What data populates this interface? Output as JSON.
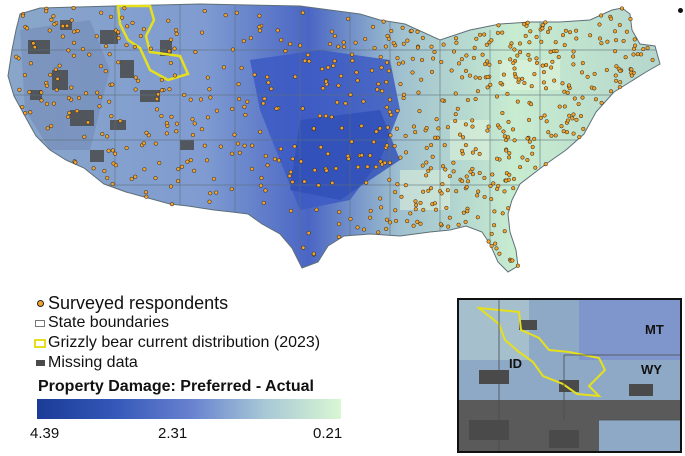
{
  "legend": {
    "respondents": "Surveyed respondents",
    "state_boundaries": "State boundaries",
    "grizzly": "Grizzly bear current distribution (2023)",
    "missing": "Missing data"
  },
  "scale": {
    "title": "Property Damage: Preferred - Actual",
    "min_label": "4.39",
    "mid_label": "2.31",
    "max_label": "0.21"
  },
  "inset": {
    "labels": {
      "mt": "MT",
      "id": "ID",
      "wy": "WY"
    }
  },
  "colors": {
    "high": "#1b3b96",
    "mid": "#6680cf",
    "low": "#d9f7d3",
    "missing": "#4a4a4a",
    "respondent": "#f4a228",
    "grizzly": "#e6e01c"
  }
}
